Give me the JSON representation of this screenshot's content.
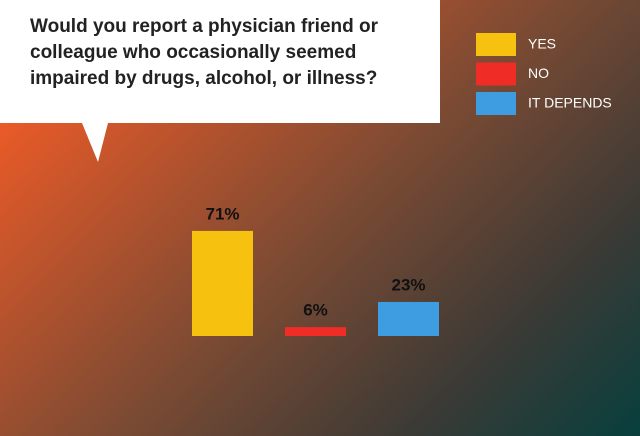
{
  "chart_data": {
    "type": "bar",
    "title": "Would you report a physician friend or colleague who occasionally seemed impaired by drugs, alcohol, or illness?",
    "categories": [
      "YES",
      "NO",
      "IT DEPENDS"
    ],
    "values": [
      71,
      6,
      23
    ],
    "value_labels": [
      "71%",
      "6%",
      "23%"
    ],
    "colors": [
      "#f6c10f",
      "#f02c26",
      "#3e9ce0"
    ]
  }
}
